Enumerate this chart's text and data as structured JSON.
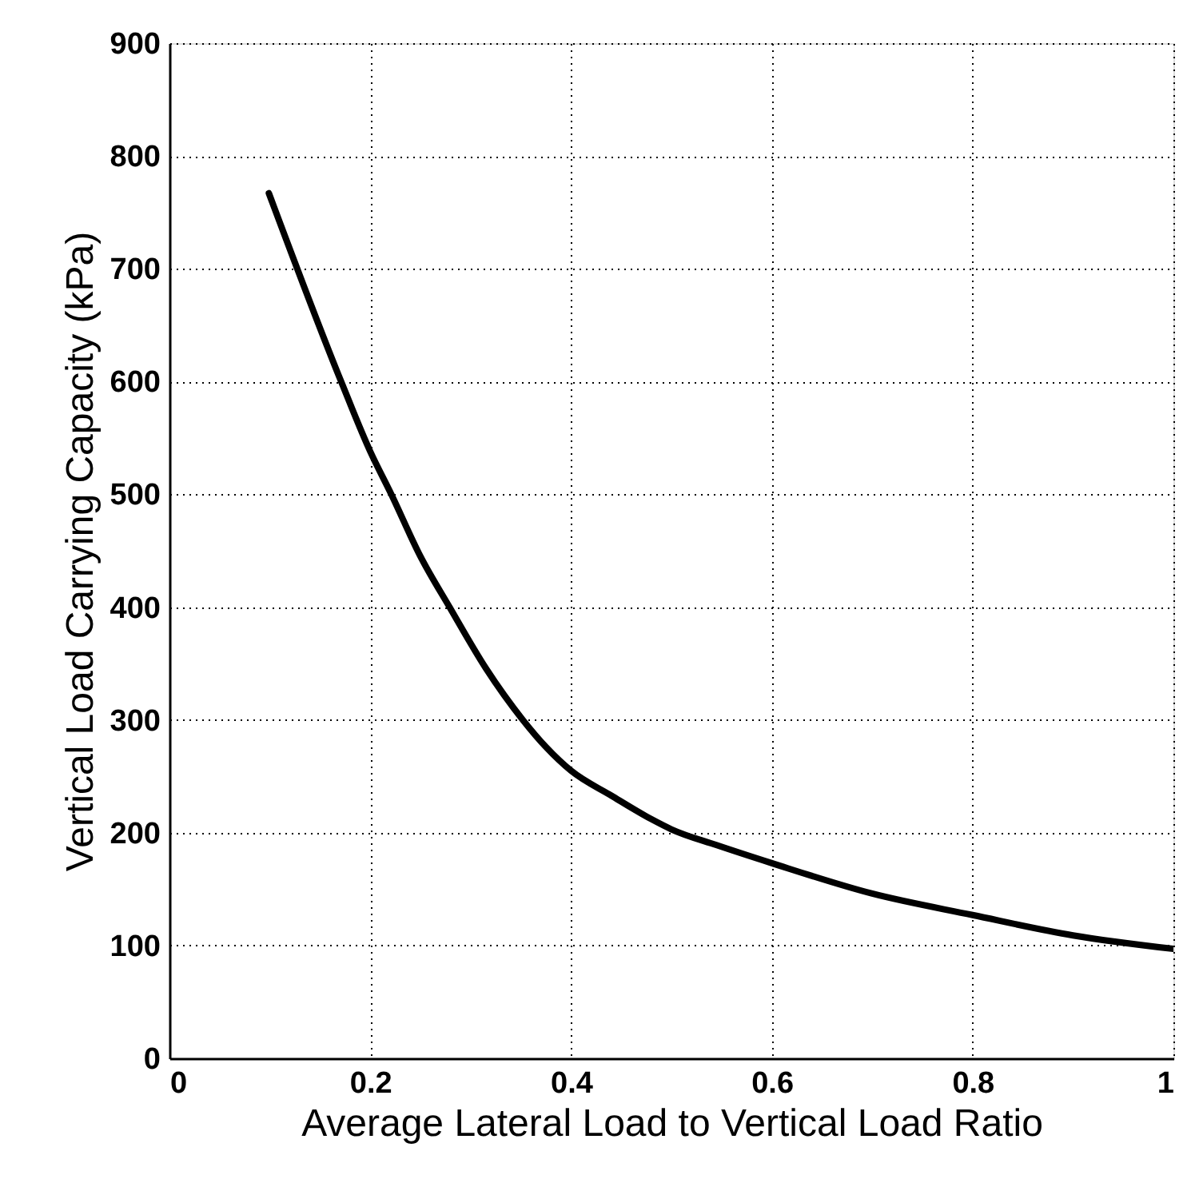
{
  "chart_data": {
    "type": "line",
    "xlabel": "Average Lateral Load to Vertical Load Ratio",
    "ylabel": "Vertical Load Carrying Capacity (kPa)",
    "x": [
      0.099,
      0.171,
      0.2,
      0.221,
      0.25,
      0.279,
      0.315,
      0.352,
      0.375,
      0.4,
      0.44,
      0.48,
      0.5,
      0.545,
      0.6,
      0.7,
      0.8,
      0.9,
      1.0
    ],
    "series": [
      {
        "color": "#000000",
        "values": [
          767,
          600,
          538,
          500,
          445,
          400,
          346,
          300,
          276,
          255,
          233,
          212,
          203,
          189,
          173,
          146,
          127,
          109,
          97
        ]
      }
    ],
    "xlim": [
      0,
      1
    ],
    "ylim": [
      0,
      900
    ],
    "xticks": [
      0,
      0.2,
      0.4,
      0.6,
      0.8,
      1
    ],
    "yticks": [
      0,
      100,
      200,
      300,
      400,
      500,
      600,
      700,
      800,
      900
    ],
    "grid": true,
    "legend": false,
    "marker": "none",
    "line_style": "solid"
  }
}
